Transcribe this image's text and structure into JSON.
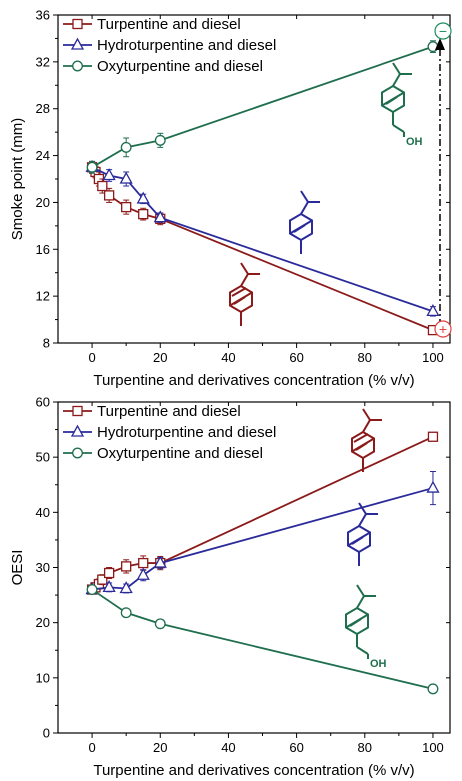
{
  "colors": {
    "turpentine": "#8b1a1a",
    "hydro": "#2a2a9a",
    "oxy": "#1f6e4e",
    "marker_fill": "#ffffff",
    "sign_plus": "#e04040",
    "sign_minus": "#1f8a5e"
  },
  "signs": {
    "plus": "+",
    "minus": "−"
  },
  "chart_data": [
    {
      "type": "line",
      "title": "",
      "xlabel": "Turpentine and derivatives concentration (% v/v)",
      "ylabel": "Smoke point (mm)",
      "xlim": [
        -10,
        105
      ],
      "ylim": [
        8,
        36
      ],
      "xticks": [
        0,
        20,
        40,
        60,
        80,
        100
      ],
      "yticks": [
        8,
        12,
        16,
        20,
        24,
        28,
        32,
        36
      ],
      "legend_position": "top-left",
      "series": [
        {
          "name": "Turpentine and diesel",
          "marker": "square",
          "color_key": "turpentine",
          "x": [
            0,
            1,
            2,
            3,
            5,
            10,
            15,
            20,
            100
          ],
          "y": [
            23.0,
            22.6,
            22.0,
            21.4,
            20.6,
            19.6,
            19.0,
            18.6,
            9.1
          ],
          "err": [
            0.5,
            0.5,
            0.6,
            0.6,
            0.6,
            0.6,
            0.5,
            0.5,
            0.3
          ]
        },
        {
          "name": "Hydroturpentine and diesel",
          "marker": "triangle",
          "color_key": "hydro",
          "x": [
            0,
            5,
            10,
            15,
            20,
            100
          ],
          "y": [
            23.0,
            22.3,
            22.0,
            20.3,
            18.7,
            10.7
          ],
          "err": [
            0.5,
            0.5,
            0.6,
            0.4,
            0.4,
            0.4
          ]
        },
        {
          "name": "Oxyturpentine and diesel",
          "marker": "circle",
          "color_key": "oxy",
          "x": [
            0,
            10,
            20,
            100
          ],
          "y": [
            23.0,
            24.7,
            25.3,
            33.3
          ],
          "err": [
            0.5,
            0.8,
            0.6,
            0.5
          ]
        }
      ]
    },
    {
      "type": "line",
      "title": "",
      "xlabel": "Turpentine and derivatives concentration (% v/v)",
      "ylabel": "OESI",
      "xlim": [
        -10,
        105
      ],
      "ylim": [
        0,
        60
      ],
      "xticks": [
        0,
        20,
        40,
        60,
        80,
        100
      ],
      "yticks": [
        0,
        10,
        20,
        30,
        40,
        50,
        60
      ],
      "legend_position": "top-left",
      "series": [
        {
          "name": "Turpentine and diesel",
          "marker": "square",
          "color_key": "turpentine",
          "x": [
            0,
            1,
            2,
            3,
            5,
            10,
            15,
            20,
            100
          ],
          "y": [
            26.0,
            26.4,
            27.0,
            27.8,
            29.0,
            30.2,
            30.8,
            30.8,
            53.7
          ],
          "err": [
            0.8,
            0.8,
            0.9,
            0.9,
            1.0,
            1.2,
            1.3,
            1.2,
            0.5
          ]
        },
        {
          "name": "Hydroturpentine and diesel",
          "marker": "triangle",
          "color_key": "hydro",
          "x": [
            0,
            5,
            10,
            15,
            20,
            100
          ],
          "y": [
            26.0,
            26.4,
            26.2,
            28.6,
            30.8,
            44.4
          ],
          "err": [
            0.8,
            0.8,
            0.8,
            1.0,
            1.0,
            3.0
          ]
        },
        {
          "name": "Oxyturpentine and diesel",
          "marker": "circle",
          "color_key": "oxy",
          "x": [
            0,
            10,
            20,
            100
          ],
          "y": [
            26.0,
            21.8,
            19.8,
            8.0
          ],
          "err": [
            0.6,
            0.5,
            0.5,
            0.5
          ]
        }
      ]
    }
  ]
}
